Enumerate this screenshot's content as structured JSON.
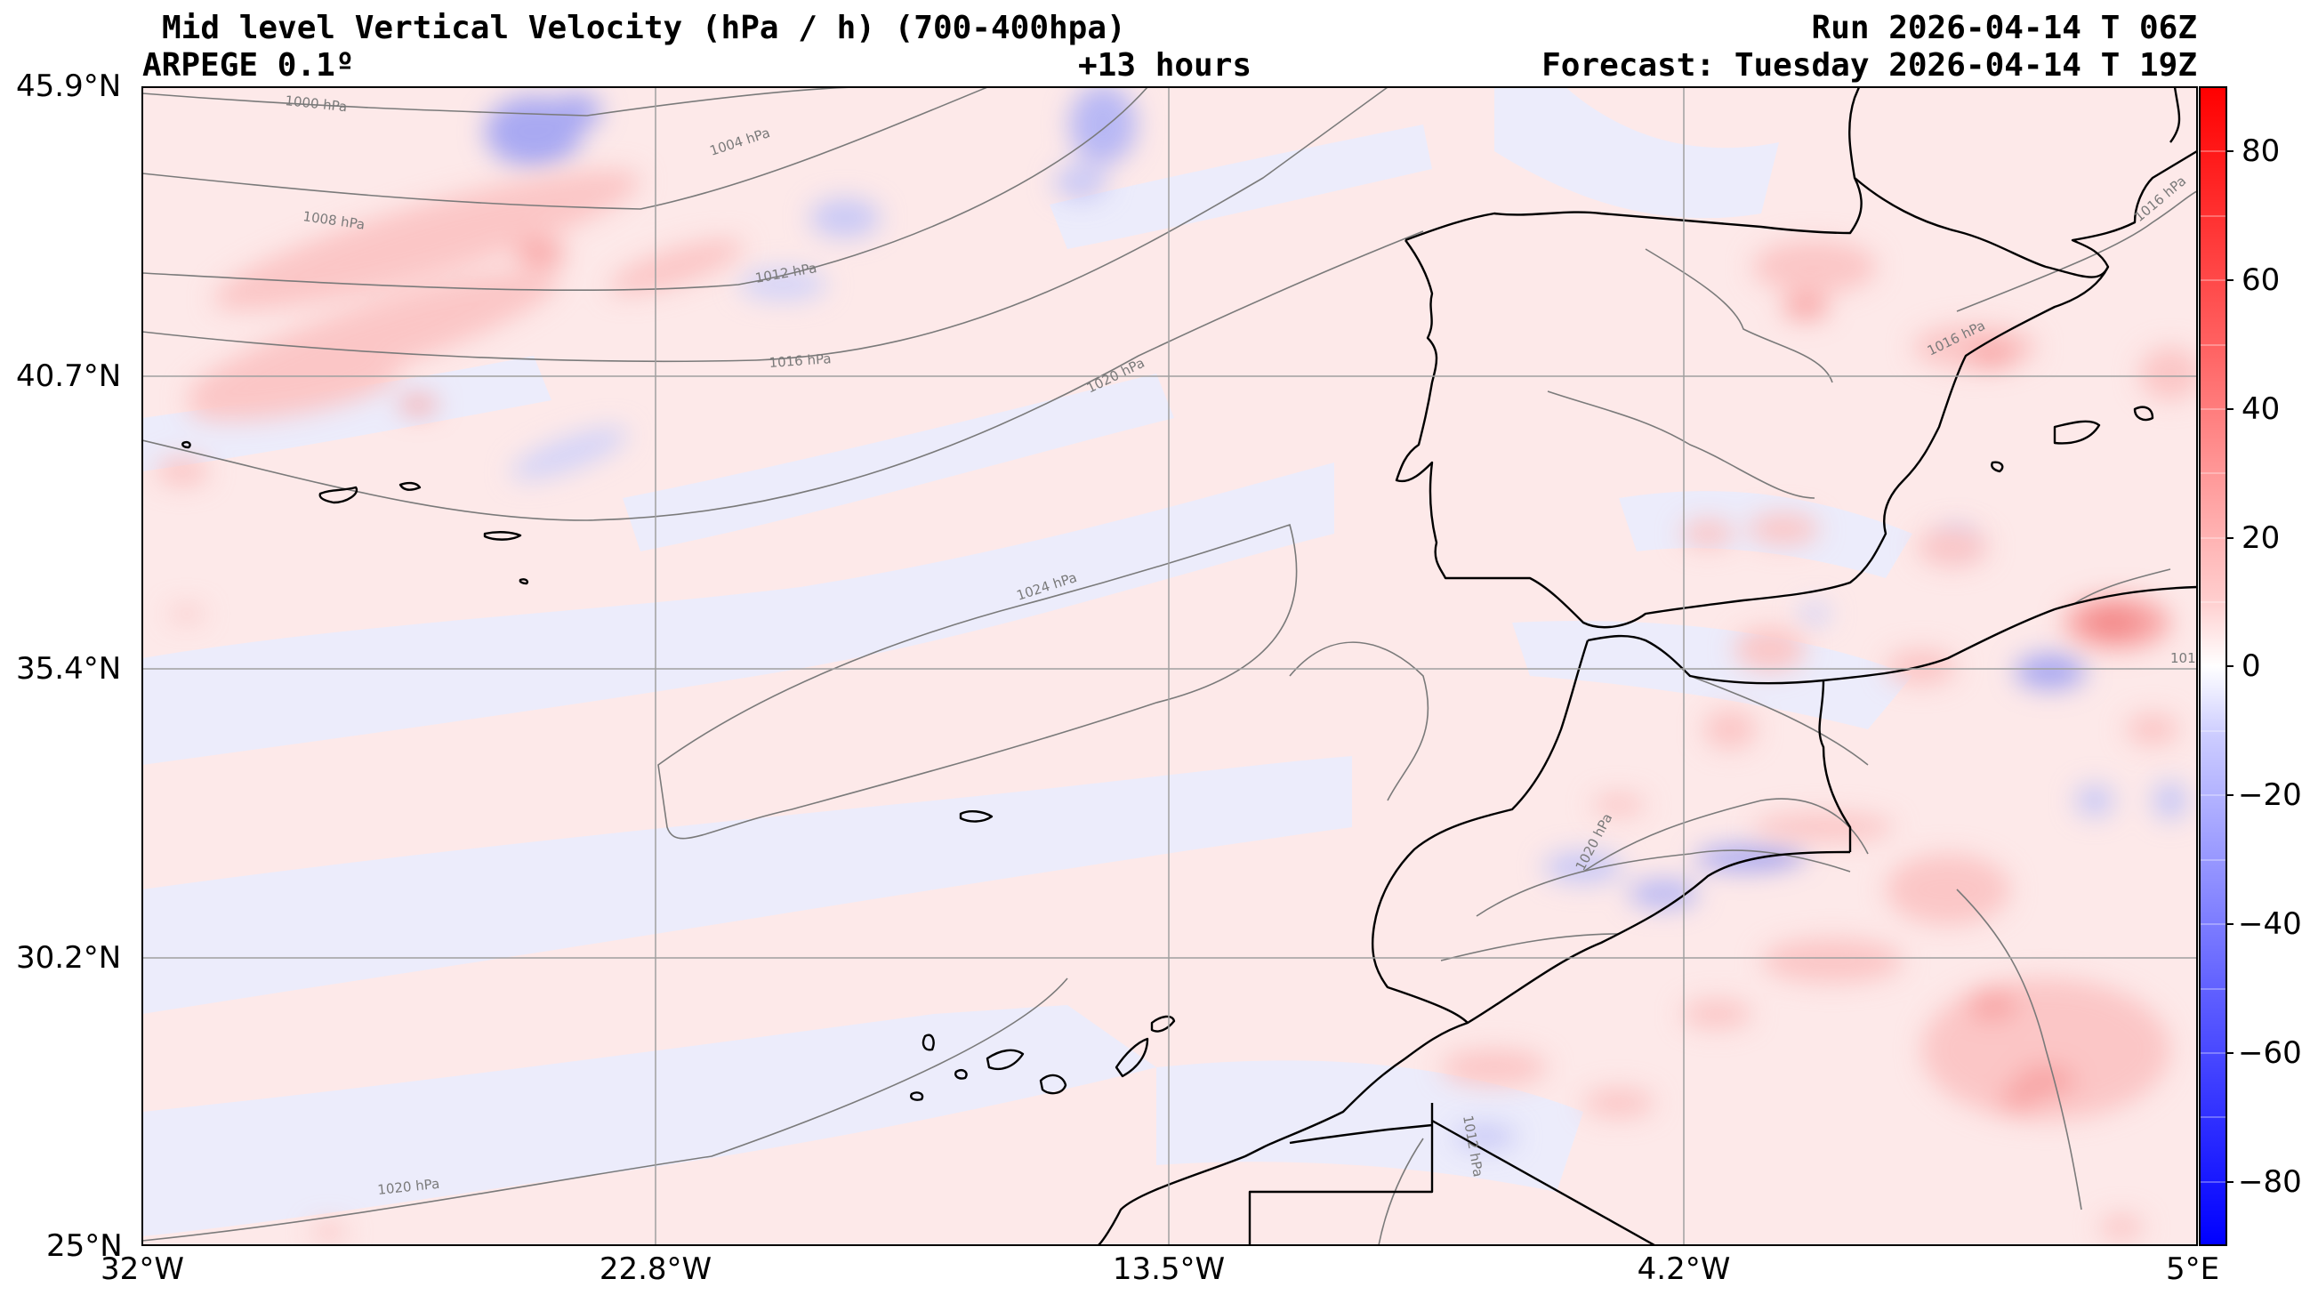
{
  "header": {
    "title": "Mid level Vertical Velocity (hPa / h)  (700-400hpa)",
    "model": "ARPEGE 0.1º",
    "lead": "+13 hours",
    "run": "Run 2026-04-14 T 06Z",
    "forecast": "Forecast: Tuesday 2026-04-14 T 19Z"
  },
  "axes": {
    "lat_labels": [
      "45.9°N",
      "40.7°N",
      "35.4°N",
      "30.2°N",
      "25°N"
    ],
    "lon_labels": [
      "32°W",
      "22.8°W",
      "13.5°W",
      "4.2°W",
      "5°E"
    ]
  },
  "colorbar": {
    "ticks": [
      "80",
      "60",
      "40",
      "20",
      "0",
      "−20",
      "−40",
      "−60",
      "−80"
    ],
    "range": [
      -90,
      90
    ],
    "positive_color": "#ff0000",
    "negative_color": "#0000ff"
  },
  "isobars": {
    "labels": [
      "1000 hPa",
      "1004 hPa",
      "1008 hPa",
      "1012 hPa",
      "1016 hPa",
      "1020 hPa",
      "1024 hPa",
      "1020 hPa",
      "1016 hPa",
      "1020 hPa",
      "1012 hPa",
      "1016 hPa",
      "101"
    ]
  },
  "colors": {
    "weak_positive": "#fde9e9",
    "weak_negative": "#ececfb",
    "coast": "#000000",
    "isobar": "#7a7a7a",
    "grid": "#a0a0a0"
  }
}
